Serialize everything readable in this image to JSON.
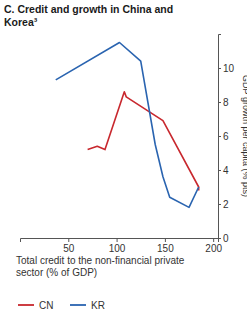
{
  "chart_data": {
    "type": "line",
    "title": "C. Credit and growth in China and Korea³",
    "x_label": "Total credit to the non-financial private sector (% of GDP)",
    "y_label": "GDP growth per capita (% pts)",
    "xlim": [
      0,
      205
    ],
    "xticks": [
      50,
      100,
      150,
      200
    ],
    "ylim": [
      0,
      12
    ],
    "yticks": [
      0,
      2,
      4,
      6,
      8,
      10
    ],
    "grid": false,
    "legend": "bottom",
    "series": [
      {
        "name": "CN",
        "color": "#c8282e",
        "x": [
          70,
          80,
          88,
          108,
          110,
          148,
          185,
          185
        ],
        "values": [
          5.2,
          5.4,
          5.2,
          8.6,
          8.3,
          6.9,
          3.0,
          2.8
        ]
      },
      {
        "name": "KR",
        "color": "#2a64b0",
        "x": [
          37,
          103,
          125,
          140,
          148,
          155,
          175,
          185
        ],
        "values": [
          9.3,
          11.5,
          10.4,
          5.5,
          3.6,
          2.4,
          1.8,
          3.0
        ]
      }
    ]
  }
}
